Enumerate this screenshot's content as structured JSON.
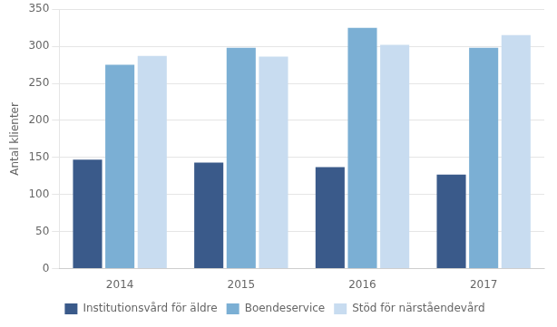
{
  "chart_data": {
    "type": "bar",
    "ylabel": "Antal klienter",
    "categories": [
      "2014",
      "2015",
      "2016",
      "2017"
    ],
    "series": [
      {
        "name": "Institutionsvård för äldre",
        "color": "#3A5A8A",
        "values": [
          147,
          143,
          137,
          127
        ]
      },
      {
        "name": "Boendeservice",
        "color": "#7BAFD4",
        "values": [
          275,
          298,
          325,
          298
        ]
      },
      {
        "name": "Stöd för närståendevård",
        "color": "#C8DCF0",
        "values": [
          287,
          286,
          302,
          315
        ]
      }
    ],
    "ylim": [
      0,
      350
    ],
    "yticks": [
      0,
      50,
      100,
      150,
      200,
      250,
      300,
      350
    ],
    "grid": true,
    "legend": "bottom"
  }
}
